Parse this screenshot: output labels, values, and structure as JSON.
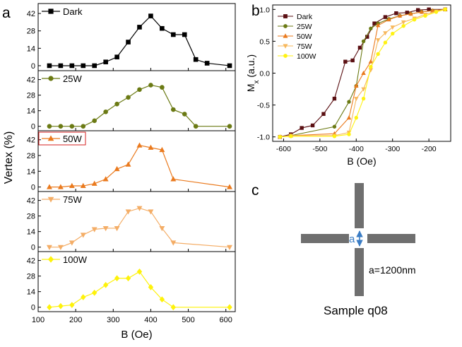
{
  "panel_labels": {
    "a": "a",
    "b": "b",
    "c": "c"
  },
  "colors": {
    "axis": "#000000",
    "dark": "#000000",
    "p25W": "#6b7a14",
    "p50W": "#ea7a1e",
    "p75W": "#f4ad66",
    "p100W": "#fef20a",
    "b_dark": "#5a0f12",
    "b_25W": "#6b7a14",
    "b_50W": "#ea7a1e",
    "b_75W": "#f7b85c",
    "b_100W": "#fff212",
    "arrow": "#3a7cc4",
    "bar": "#6f6f6f",
    "legend_box_50W": "#d62020"
  },
  "chart_data": [
    {
      "id": "panel-a",
      "type": "line",
      "title": "",
      "xlabel": "B (Oe)",
      "ylabel": "Vertex (%)",
      "xlim": [
        100,
        625
      ],
      "x_ticks": [
        100,
        200,
        300,
        400,
        500,
        600
      ],
      "x_tick_labels": [
        "100",
        "200",
        "300",
        "400",
        "500",
        "600"
      ],
      "ylim": [
        -4,
        50
      ],
      "y_ticks": [
        0,
        14,
        28,
        42
      ],
      "y_tick_labels": [
        "0",
        "14",
        "28",
        "42"
      ],
      "legend_position": "top-left",
      "series": [
        {
          "name": "Dark",
          "marker": "square",
          "color_key": "dark",
          "x": [
            130,
            160,
            190,
            220,
            250,
            280,
            310,
            340,
            370,
            400,
            430,
            460,
            490,
            520,
            550,
            610
          ],
          "y": [
            0,
            0,
            0,
            0,
            0,
            3,
            7,
            19,
            31,
            40,
            30,
            25,
            25,
            5,
            2,
            0
          ]
        },
        {
          "name": "25W",
          "marker": "circle",
          "color_key": "p25W",
          "x": [
            130,
            160,
            190,
            220,
            250,
            280,
            310,
            340,
            370,
            400,
            430,
            460,
            490,
            520,
            610
          ],
          "y": [
            0,
            0,
            0,
            0,
            5,
            13,
            20,
            26,
            33,
            37,
            35,
            15,
            11,
            0,
            0
          ]
        },
        {
          "name": "50W",
          "marker": "triangle-up",
          "color_key": "p50W",
          "x": [
            130,
            160,
            190,
            220,
            250,
            280,
            310,
            340,
            370,
            400,
            430,
            460,
            610
          ],
          "y": [
            0,
            0,
            1,
            1,
            3,
            7,
            16,
            20,
            37,
            35,
            33,
            7,
            0
          ]
        },
        {
          "name": "75W",
          "marker": "triangle-down",
          "color_key": "p75W",
          "x": [
            130,
            160,
            190,
            220,
            250,
            280,
            310,
            340,
            370,
            400,
            430,
            460,
            610
          ],
          "y": [
            0,
            0,
            4,
            11,
            16,
            17,
            17,
            32,
            35,
            32,
            17,
            4,
            0
          ]
        },
        {
          "name": "100W",
          "marker": "diamond",
          "color_key": "p100W",
          "x": [
            130,
            160,
            190,
            220,
            250,
            280,
            310,
            340,
            370,
            400,
            430,
            460,
            610
          ],
          "y": [
            0,
            1,
            2,
            9,
            13,
            20,
            26,
            26,
            32,
            18,
            7,
            0,
            0
          ]
        }
      ]
    },
    {
      "id": "panel-b",
      "type": "line",
      "title": "",
      "xlabel": "B (Oe)",
      "ylabel": "M",
      "ylabel_sub": "x",
      "ylabel_unit": " (a.u.)",
      "xlim": [
        -630,
        -140
      ],
      "x_ticks": [
        -600,
        -500,
        -400,
        -300,
        -200
      ],
      "x_tick_labels": [
        "-600",
        "-500",
        "-400",
        "-300",
        "-200"
      ],
      "ylim": [
        -1.07,
        1.07
      ],
      "y_ticks": [
        -1.0,
        -0.5,
        0.0,
        0.5,
        1.0
      ],
      "y_tick_labels": [
        "-1.0",
        "-0.5",
        "0.0",
        "0.5",
        "1.0"
      ],
      "legend_position": "top-left",
      "series": [
        {
          "name": "Dark",
          "marker": "square",
          "color_key": "b_dark",
          "x": [
            -610,
            -580,
            -550,
            -520,
            -490,
            -460,
            -430,
            -410,
            -390,
            -370,
            -350,
            -320,
            -290,
            -260,
            -230,
            -200,
            -155
          ],
          "y": [
            -1.0,
            -0.96,
            -0.86,
            -0.82,
            -0.64,
            -0.4,
            0.18,
            0.2,
            0.4,
            0.57,
            0.78,
            0.88,
            0.94,
            0.95,
            0.99,
            1.0,
            1.0
          ]
        },
        {
          "name": "25W",
          "marker": "circle",
          "color_key": "b_25W",
          "x": [
            -610,
            -580,
            -460,
            -420,
            -400,
            -380,
            -360,
            -340,
            -310,
            -280,
            -250,
            -220,
            -190,
            -155
          ],
          "y": [
            -1.0,
            -0.98,
            -0.84,
            -0.45,
            -0.2,
            0.5,
            0.7,
            0.78,
            0.85,
            0.9,
            0.93,
            0.96,
            0.98,
            1.0
          ]
        },
        {
          "name": "50W",
          "marker": "triangle-up",
          "color_key": "b_50W",
          "x": [
            -610,
            -580,
            -460,
            -420,
            -400,
            -380,
            -360,
            -340,
            -310,
            -280,
            -250,
            -220,
            -190,
            -155
          ],
          "y": [
            -1.0,
            -0.98,
            -0.95,
            -0.7,
            -0.2,
            0.0,
            0.18,
            0.75,
            0.84,
            0.9,
            0.93,
            0.96,
            0.98,
            1.0
          ]
        },
        {
          "name": "75W",
          "marker": "triangle-down",
          "color_key": "b_75W",
          "x": [
            -610,
            -580,
            -460,
            -420,
            -400,
            -380,
            -360,
            -340,
            -320,
            -300,
            -270,
            -240,
            -210,
            -180,
            -155
          ],
          "y": [
            -1.0,
            -0.98,
            -0.98,
            -0.93,
            -0.4,
            -0.25,
            0.05,
            0.52,
            0.63,
            0.72,
            0.8,
            0.86,
            0.92,
            0.97,
            1.0
          ]
        },
        {
          "name": "100W",
          "marker": "circle",
          "color_key": "b_100W",
          "x": [
            -610,
            -580,
            -460,
            -420,
            -400,
            -380,
            -360,
            -340,
            -320,
            -300,
            -270,
            -240,
            -210,
            -180,
            -155
          ],
          "y": [
            -1.0,
            -0.99,
            -0.99,
            -0.96,
            -0.7,
            -0.4,
            0.1,
            0.3,
            0.48,
            0.62,
            0.74,
            0.84,
            0.9,
            0.96,
            1.0
          ]
        }
      ]
    }
  ],
  "diagram": {
    "gap_label": "a",
    "size_label": "a=1200nm",
    "caption": "Sample q08"
  }
}
